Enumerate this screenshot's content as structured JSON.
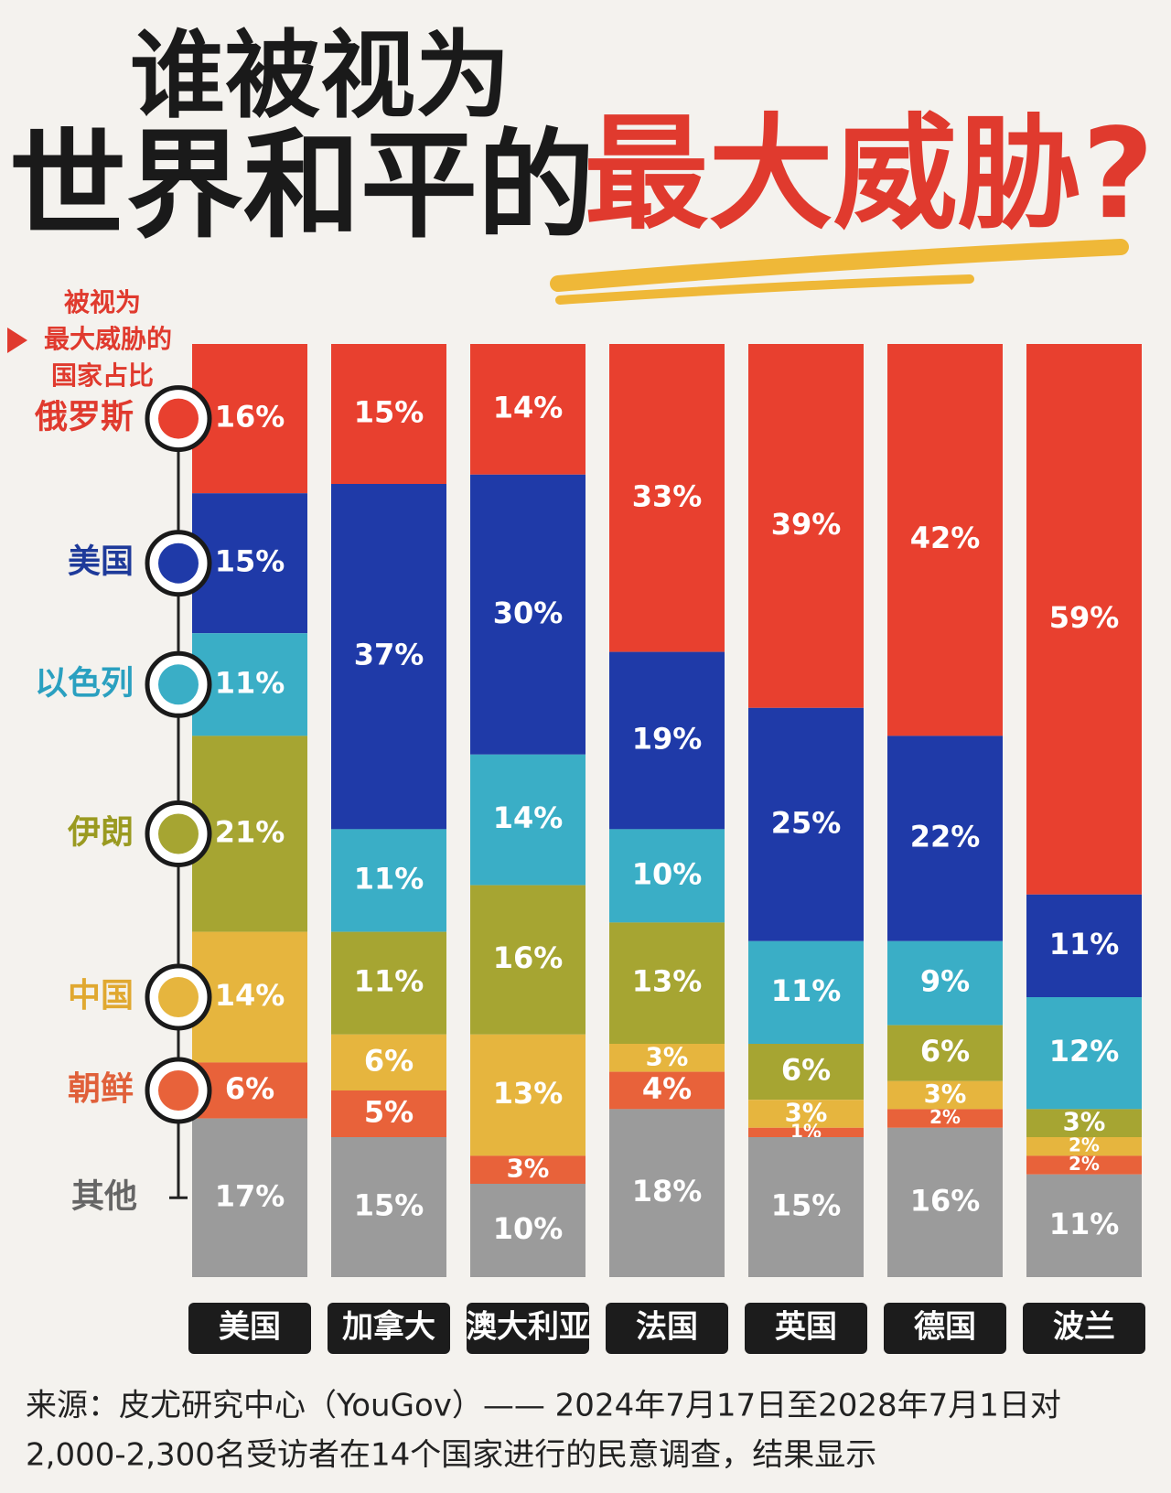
{
  "chart_data": {
    "type": "bar",
    "stacked": true,
    "title": [
      "谁被视为",
      "世界和平的",
      "最大威胁?"
    ],
    "legend_title": [
      "被视为",
      "最大威胁的",
      "国家占比"
    ],
    "categories": [
      "美国",
      "加拿大",
      "澳大利亚",
      "法国",
      "英国",
      "德国",
      "波兰"
    ],
    "series": [
      {
        "name": "俄罗斯",
        "color": "#e8402f",
        "text_color": "#e03a2e",
        "values": [
          16,
          15,
          14,
          33,
          39,
          42,
          59
        ],
        "value_labels": [
          "16%",
          "15%",
          "14%",
          "33%",
          "39%",
          "42%",
          "59%"
        ]
      },
      {
        "name": "美国",
        "color": "#1f3aa8",
        "text_color": "#1e3a9a",
        "values": [
          15,
          37,
          30,
          19,
          25,
          22,
          11
        ],
        "value_labels": [
          "15%",
          "37%",
          "30%",
          "19%",
          "25%",
          "22%",
          "11%"
        ]
      },
      {
        "name": "以色列",
        "color": "#3aaec6",
        "text_color": "#2aa0c0",
        "values": [
          11,
          11,
          14,
          10,
          11,
          9,
          12
        ],
        "value_labels": [
          "11%",
          "11%",
          "14%",
          "10%",
          "11%",
          "9%",
          "12%"
        ]
      },
      {
        "name": "伊朗",
        "color": "#a6a532",
        "text_color": "#9a9a20",
        "values": [
          21,
          11,
          16,
          13,
          6,
          6,
          3
        ],
        "value_labels": [
          "21%",
          "11%",
          "16%",
          "13%",
          "6%",
          "6%",
          "3%"
        ]
      },
      {
        "name": "中国",
        "color": "#e6b53e",
        "text_color": "#e0a830",
        "values": [
          14,
          6,
          13,
          3,
          3,
          3,
          2
        ],
        "value_labels": [
          "14%",
          "6%",
          "13%",
          "3%",
          "3%",
          "3%",
          "2%"
        ]
      },
      {
        "name": "朝鲜",
        "color": "#e8623a",
        "text_color": "#e0603a",
        "values": [
          6,
          5,
          3,
          4,
          1,
          2,
          2
        ],
        "value_labels": [
          "6%",
          "5%",
          "3%",
          "4%",
          "1%",
          "2%",
          "2%"
        ]
      },
      {
        "name": "其他",
        "color": "#9b9b9b",
        "text_color": "#666666",
        "values": [
          17,
          15,
          10,
          18,
          15,
          16,
          11
        ],
        "value_labels": [
          "17%",
          "15%",
          "10%",
          "18%",
          "15%",
          "16%",
          "11%"
        ]
      }
    ],
    "source": [
      "来源：皮尤研究中心（YouGov）—— 2024年7月17日至2028年7月1日对",
      "2,000-2,300名受访者在14个国家进行的民意调查，结果显示"
    ]
  }
}
